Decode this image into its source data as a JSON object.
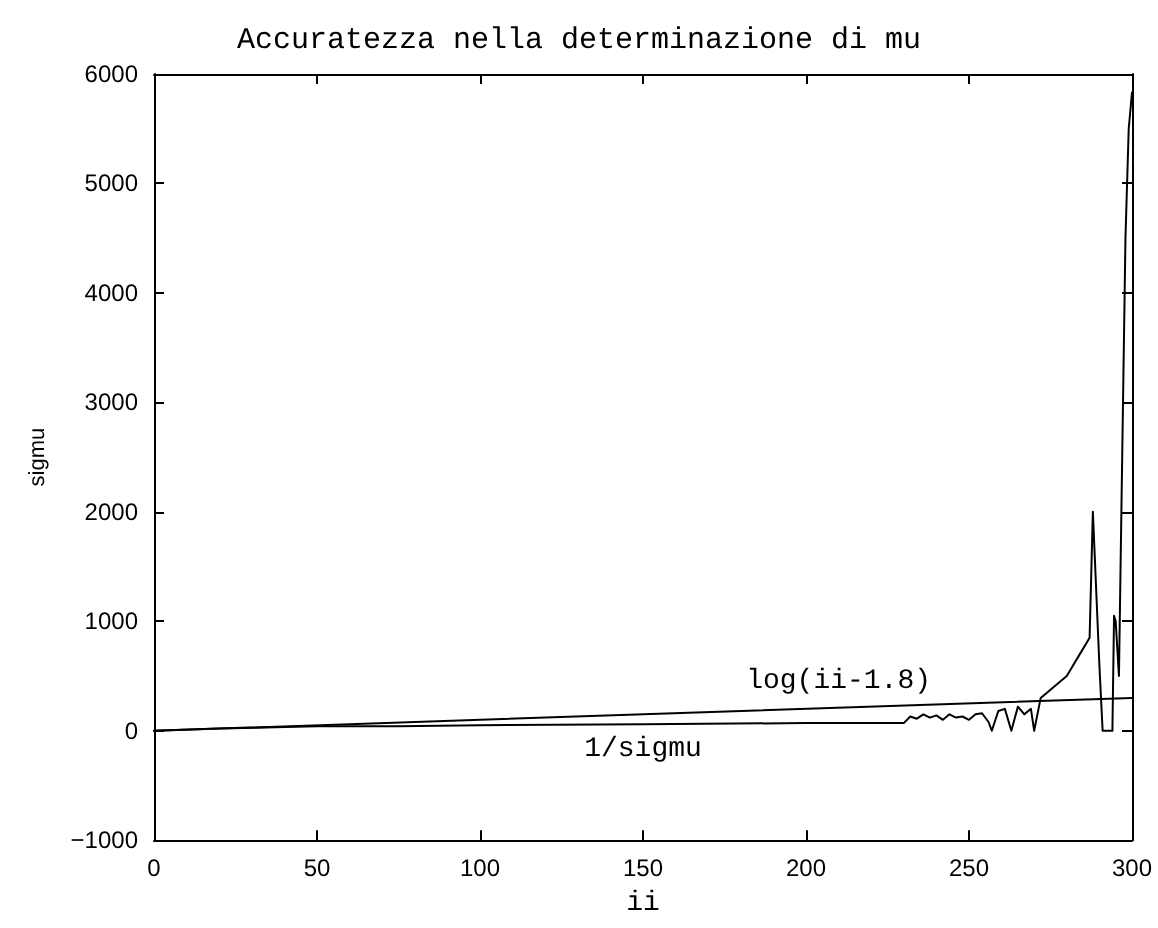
{
  "chart_data": {
    "type": "line",
    "title": "Accuratezza nella determinazione di mu",
    "xlabel": "ii",
    "ylabel": "sigmu",
    "xlim": [
      0,
      300
    ],
    "xticks": [
      0,
      50,
      100,
      150,
      200,
      250,
      300
    ],
    "ylim": [
      -1000,
      6000
    ],
    "yticks": [
      -1000,
      0,
      1000,
      2000,
      3000,
      4000,
      5000,
      6000
    ],
    "grid": false,
    "marker": "none",
    "line_style": "solid",
    "series": [
      {
        "name": "log(ii-1.8)",
        "color": "#000000",
        "x": [
          0,
          300
        ],
        "values": [
          0,
          300
        ]
      },
      {
        "name": "1/sigmu",
        "color": "#000000",
        "x": [
          0,
          20,
          50,
          75,
          100,
          150,
          200,
          230,
          232,
          234,
          236,
          238,
          240,
          242,
          244,
          246,
          248,
          250,
          252,
          254,
          256,
          257,
          259,
          261,
          263,
          265,
          267,
          269,
          270,
          272,
          274,
          276,
          278,
          280,
          282,
          284,
          286,
          287,
          288,
          290,
          291,
          293,
          294,
          294.5,
          295,
          296,
          297,
          298,
          299,
          300
        ],
        "values": [
          0,
          20,
          40,
          40,
          50,
          60,
          70,
          70,
          130,
          110,
          150,
          120,
          140,
          100,
          150,
          120,
          130,
          100,
          150,
          160,
          80,
          0,
          180,
          200,
          0,
          220,
          150,
          200,
          0,
          300,
          350,
          400,
          450,
          500,
          600,
          700,
          800,
          850,
          2000,
          600,
          0,
          0,
          0,
          1050,
          1000,
          500,
          2500,
          4500,
          5500,
          5830
        ]
      }
    ]
  }
}
